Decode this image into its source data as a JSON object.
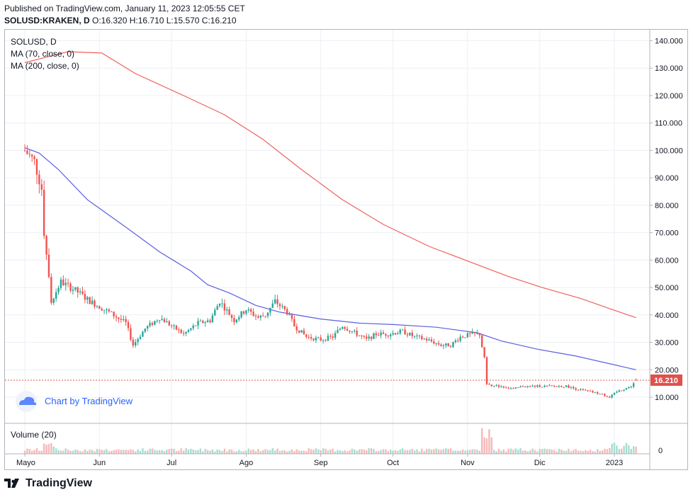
{
  "header": {
    "published": "Published on TradingView.com, January 11, 2023 12:05:55 CET",
    "symbol": "SOLUSD:KRAKEN, D",
    "ohlc": "O:16.320 H:16.710 L:15.570 C:16.210"
  },
  "legend": {
    "symbol": "SOLUSD, D",
    "ma70": "MA (70, close, 0)",
    "ma200": "MA (200, close, 0)",
    "volume": "Volume (20)"
  },
  "watermark": "Chart by TradingView",
  "brand": "TradingView",
  "price_tag": "16.210",
  "colors": {
    "up": "#26a69a",
    "down": "#ef5350",
    "ma70": "#5b5fe0",
    "ma200": "#f0605c",
    "vol_up": "#a8dcd1",
    "vol_down": "#f7b8b8",
    "grid": "#eceff4",
    "price_tag": "#e0514c"
  },
  "chart_data": {
    "type": "candlestick",
    "ylim": [
      0,
      145
    ],
    "y_ticks": [
      "140.000",
      "130.000",
      "120.000",
      "110.000",
      "100.000",
      "90.000",
      "80.000",
      "70.000",
      "60.000",
      "50.000",
      "40.000",
      "30.000",
      "20.000",
      "10.000"
    ],
    "volume_tick": "0",
    "x_ticks": [
      "Mayo",
      "Jun",
      "Jul",
      "Ago",
      "Sep",
      "Oct",
      "Nov",
      "Dic",
      "2023"
    ],
    "last_close": 16.21,
    "close_series": [
      {
        "date": "2022-05-01",
        "close": 100
      },
      {
        "date": "2022-05-05",
        "close": 96
      },
      {
        "date": "2022-05-08",
        "close": 86
      },
      {
        "date": "2022-05-09",
        "close": 70
      },
      {
        "date": "2022-05-11",
        "close": 55
      },
      {
        "date": "2022-05-12",
        "close": 45
      },
      {
        "date": "2022-05-16",
        "close": 52
      },
      {
        "date": "2022-05-22",
        "close": 49
      },
      {
        "date": "2022-05-28",
        "close": 45
      },
      {
        "date": "2022-06-05",
        "close": 41
      },
      {
        "date": "2022-06-12",
        "close": 37
      },
      {
        "date": "2022-06-15",
        "close": 29
      },
      {
        "date": "2022-06-20",
        "close": 35
      },
      {
        "date": "2022-06-26",
        "close": 39
      },
      {
        "date": "2022-07-01",
        "close": 36
      },
      {
        "date": "2022-07-06",
        "close": 33
      },
      {
        "date": "2022-07-12",
        "close": 37
      },
      {
        "date": "2022-07-17",
        "close": 38
      },
      {
        "date": "2022-07-21",
        "close": 45
      },
      {
        "date": "2022-07-27",
        "close": 38
      },
      {
        "date": "2022-08-01",
        "close": 42
      },
      {
        "date": "2022-08-06",
        "close": 39
      },
      {
        "date": "2022-08-09",
        "close": 40
      },
      {
        "date": "2022-08-13",
        "close": 45
      },
      {
        "date": "2022-08-18",
        "close": 41
      },
      {
        "date": "2022-08-21",
        "close": 36
      },
      {
        "date": "2022-08-26",
        "close": 32
      },
      {
        "date": "2022-09-01",
        "close": 31
      },
      {
        "date": "2022-09-06",
        "close": 32
      },
      {
        "date": "2022-09-10",
        "close": 36
      },
      {
        "date": "2022-09-16",
        "close": 33
      },
      {
        "date": "2022-09-20",
        "close": 31
      },
      {
        "date": "2022-09-24",
        "close": 33
      },
      {
        "date": "2022-09-29",
        "close": 33
      },
      {
        "date": "2022-10-05",
        "close": 34
      },
      {
        "date": "2022-10-10",
        "close": 32
      },
      {
        "date": "2022-10-15",
        "close": 31
      },
      {
        "date": "2022-10-21",
        "close": 29
      },
      {
        "date": "2022-10-25",
        "close": 29
      },
      {
        "date": "2022-10-29",
        "close": 32
      },
      {
        "date": "2022-11-03",
        "close": 33
      },
      {
        "date": "2022-11-06",
        "close": 33
      },
      {
        "date": "2022-11-08",
        "close": 24
      },
      {
        "date": "2022-11-09",
        "close": 15
      },
      {
        "date": "2022-11-11",
        "close": 14
      },
      {
        "date": "2022-11-15",
        "close": 14
      },
      {
        "date": "2022-11-20",
        "close": 13
      },
      {
        "date": "2022-11-24",
        "close": 14
      },
      {
        "date": "2022-11-30",
        "close": 14
      },
      {
        "date": "2022-12-06",
        "close": 14
      },
      {
        "date": "2022-12-12",
        "close": 14
      },
      {
        "date": "2022-12-16",
        "close": 13
      },
      {
        "date": "2022-12-22",
        "close": 12
      },
      {
        "date": "2022-12-27",
        "close": 11
      },
      {
        "date": "2022-12-30",
        "close": 10
      },
      {
        "date": "2023-01-02",
        "close": 12
      },
      {
        "date": "2023-01-05",
        "close": 13
      },
      {
        "date": "2023-01-08",
        "close": 14
      },
      {
        "date": "2023-01-10",
        "close": 16.21
      }
    ],
    "ma70": [
      {
        "date": "2022-05-01",
        "value": 101
      },
      {
        "date": "2022-05-07",
        "value": 99
      },
      {
        "date": "2022-05-15",
        "value": 93
      },
      {
        "date": "2022-05-27",
        "value": 82
      },
      {
        "date": "2022-06-12",
        "value": 72
      },
      {
        "date": "2022-06-26",
        "value": 63
      },
      {
        "date": "2022-07-09",
        "value": 56
      },
      {
        "date": "2022-07-16",
        "value": 51
      },
      {
        "date": "2022-07-25",
        "value": 48
      },
      {
        "date": "2022-08-05",
        "value": 43.5
      },
      {
        "date": "2022-08-15",
        "value": 41
      },
      {
        "date": "2022-09-01",
        "value": 38.5
      },
      {
        "date": "2022-09-17",
        "value": 37
      },
      {
        "date": "2022-10-01",
        "value": 36.5
      },
      {
        "date": "2022-10-19",
        "value": 35.5
      },
      {
        "date": "2022-11-05",
        "value": 33.5
      },
      {
        "date": "2022-11-15",
        "value": 30.5
      },
      {
        "date": "2022-11-30",
        "value": 27.5
      },
      {
        "date": "2022-12-16",
        "value": 25
      },
      {
        "date": "2022-12-31",
        "value": 22
      },
      {
        "date": "2023-01-10",
        "value": 20
      }
    ],
    "ma200": [
      {
        "date": "2022-05-01",
        "value": 132
      },
      {
        "date": "2022-05-10",
        "value": 134
      },
      {
        "date": "2022-05-19",
        "value": 136
      },
      {
        "date": "2022-06-02",
        "value": 135.5
      },
      {
        "date": "2022-06-16",
        "value": 128
      },
      {
        "date": "2022-07-06",
        "value": 120
      },
      {
        "date": "2022-07-23",
        "value": 113
      },
      {
        "date": "2022-08-08",
        "value": 104
      },
      {
        "date": "2022-08-24",
        "value": 93
      },
      {
        "date": "2022-09-10",
        "value": 82
      },
      {
        "date": "2022-09-27",
        "value": 73
      },
      {
        "date": "2022-10-16",
        "value": 65
      },
      {
        "date": "2022-11-03",
        "value": 59
      },
      {
        "date": "2022-11-18",
        "value": 54
      },
      {
        "date": "2022-12-02",
        "value": 50
      },
      {
        "date": "2022-12-18",
        "value": 46
      },
      {
        "date": "2022-12-31",
        "value": 42
      },
      {
        "date": "2023-01-10",
        "value": 39
      }
    ]
  }
}
